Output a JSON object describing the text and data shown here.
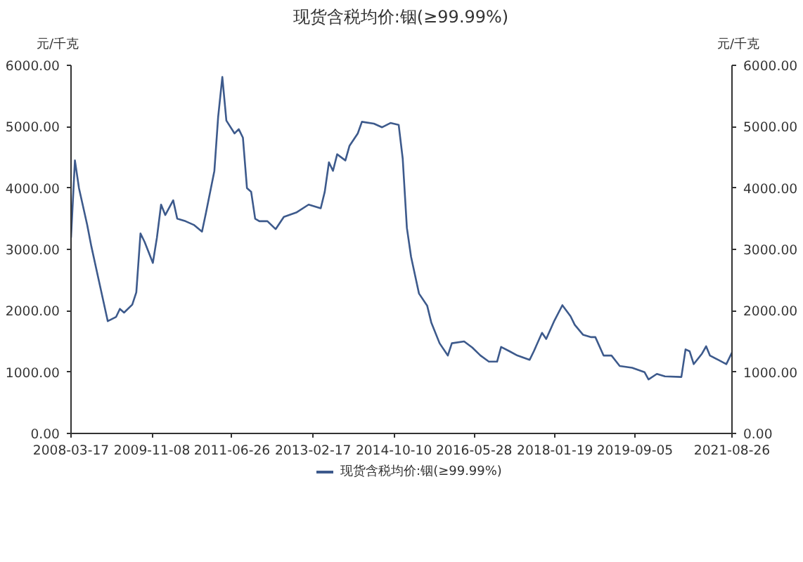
{
  "chart_data": {
    "type": "line",
    "title": "现货含税均价:铟(≥99.99%)",
    "ylabel": "元/千克",
    "y2label": "元/千克",
    "x": [
      "2008-03-17",
      "2008-04-15",
      "2008-05-15",
      "2008-07-15",
      "2008-08-15",
      "2008-10-15",
      "2008-12-15",
      "2009-02-15",
      "2009-03-15",
      "2009-04-15",
      "2009-06-15",
      "2009-07-15",
      "2009-08-15",
      "2009-09-15",
      "2009-11-15",
      "2009-12-15",
      "2010-01-15",
      "2010-02-15",
      "2010-04-15",
      "2010-05-15",
      "2010-07-15",
      "2010-09-15",
      "2010-11-15",
      "2010-12-15",
      "2011-02-15",
      "2011-03-15",
      "2011-04-15",
      "2011-05-15",
      "2011-07-15",
      "2011-08-15",
      "2011-09-15",
      "2011-10-15",
      "2011-11-15",
      "2011-12-15",
      "2012-01-15",
      "2012-03-15",
      "2012-05-15",
      "2012-07-15",
      "2012-10-15",
      "2013-01-15",
      "2013-04-15",
      "2013-05-15",
      "2013-06-15",
      "2013-07-15",
      "2013-08-15",
      "2013-10-15",
      "2013-11-15",
      "2014-01-15",
      "2014-02-15",
      "2014-05-15",
      "2014-07-15",
      "2014-09-15",
      "2014-11-15",
      "2014-12-15",
      "2015-01-15",
      "2015-02-15",
      "2015-04-15",
      "2015-06-15",
      "2015-07-15",
      "2015-09-15",
      "2015-11-15",
      "2015-12-15",
      "2016-03-15",
      "2016-05-15",
      "2016-07-15",
      "2016-09-15",
      "2016-11-15",
      "2016-12-15",
      "2017-02-15",
      "2017-04-15",
      "2017-07-15",
      "2017-08-15",
      "2017-10-15",
      "2017-11-15",
      "2018-01-15",
      "2018-03-15",
      "2018-05-15",
      "2018-06-15",
      "2018-08-15",
      "2018-10-15",
      "2018-11-15",
      "2019-01-15",
      "2019-03-15",
      "2019-05-15",
      "2019-08-15",
      "2019-11-15",
      "2019-12-15",
      "2020-02-15",
      "2020-04-15",
      "2020-08-15",
      "2020-09-15",
      "2020-10-15",
      "2020-11-15",
      "2021-01-15",
      "2021-02-15",
      "2021-03-15",
      "2021-05-15",
      "2021-07-15",
      "2021-08-26"
    ],
    "series": [
      {
        "name": "现货含税均价:铟(≥99.99%)",
        "color": "#3d5a8c",
        "values": [
          3190,
          4450,
          4000,
          3400,
          3050,
          2440,
          1830,
          1900,
          2030,
          1970,
          2100,
          2300,
          3260,
          3120,
          2780,
          3190,
          3730,
          3560,
          3800,
          3500,
          3460,
          3400,
          3290,
          3600,
          4280,
          5160,
          5810,
          5100,
          4890,
          4960,
          4820,
          4000,
          3940,
          3500,
          3460,
          3460,
          3330,
          3530,
          3600,
          3730,
          3670,
          3940,
          4420,
          4280,
          4550,
          4450,
          4690,
          4890,
          5080,
          5050,
          4990,
          5060,
          5030,
          4480,
          3350,
          2880,
          2280,
          2080,
          1810,
          1470,
          1270,
          1470,
          1500,
          1400,
          1270,
          1170,
          1170,
          1410,
          1340,
          1270,
          1200,
          1340,
          1640,
          1540,
          1840,
          2090,
          1910,
          1770,
          1610,
          1570,
          1570,
          1270,
          1270,
          1100,
          1070,
          1000,
          880,
          970,
          930,
          920,
          1370,
          1340,
          1130,
          1300,
          1420,
          1270,
          1200,
          1130,
          1320
        ]
      }
    ],
    "xlim": [
      "2008-03-17",
      "2021-08-26"
    ],
    "xticks": [
      "2008-03-17",
      "2009-11-08",
      "2011-06-26",
      "2013-02-17",
      "2014-10-10",
      "2016-05-28",
      "2018-01-19",
      "2019-09-05",
      "2021-08-26"
    ],
    "ylim": [
      0,
      6000
    ],
    "yticks": [
      {
        "value": 0,
        "label": "0.00"
      },
      {
        "value": 1000,
        "label": "1000.00"
      },
      {
        "value": 2000,
        "label": "2000.00"
      },
      {
        "value": 3000,
        "label": "3000.00"
      },
      {
        "value": 4000,
        "label": "4000.00"
      },
      {
        "value": 5000,
        "label": "5000.00"
      },
      {
        "value": 6000,
        "label": "6000.00"
      }
    ],
    "y2lim": [
      0,
      6000
    ],
    "y2ticks": [
      {
        "value": 0,
        "label": "0.00"
      },
      {
        "value": 1000,
        "label": "1000.00"
      },
      {
        "value": 2000,
        "label": "2000.00"
      },
      {
        "value": 3000,
        "label": "3000.00"
      },
      {
        "value": 4000,
        "label": "4000.00"
      },
      {
        "value": 5000,
        "label": "5000.00"
      },
      {
        "value": 6000,
        "label": "6000.00"
      }
    ],
    "grid": false,
    "legend": "bottom",
    "line_style": "solid"
  }
}
